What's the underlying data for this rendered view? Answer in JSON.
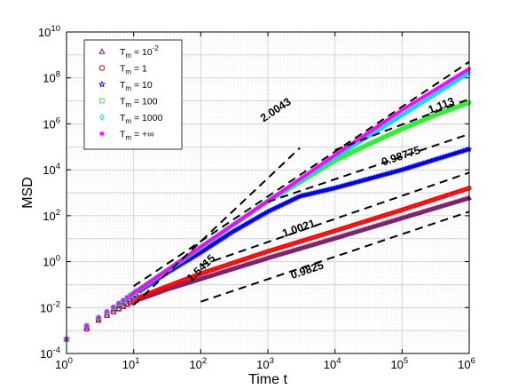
{
  "chart_data": {
    "type": "scatter",
    "x_scale": "log",
    "y_scale": "log",
    "xlim": [
      1,
      1000000
    ],
    "ylim": [
      0.0001,
      10000000000
    ],
    "xlabel": "Time t",
    "ylabel": "MSD",
    "grid": true,
    "legend_position": "top-left",
    "x_ticks": [
      {
        "value": 1,
        "base": "10",
        "exp": "0"
      },
      {
        "value": 10,
        "base": "10",
        "exp": "1"
      },
      {
        "value": 100,
        "base": "10",
        "exp": "2"
      },
      {
        "value": 1000,
        "base": "10",
        "exp": "3"
      },
      {
        "value": 10000,
        "base": "10",
        "exp": "4"
      },
      {
        "value": 100000,
        "base": "10",
        "exp": "5"
      },
      {
        "value": 1000000,
        "base": "10",
        "exp": "6"
      }
    ],
    "y_ticks": [
      {
        "value": 0.0001,
        "base": "10",
        "exp": "-4"
      },
      {
        "value": 0.01,
        "base": "10",
        "exp": "-2"
      },
      {
        "value": 1,
        "base": "10",
        "exp": "0"
      },
      {
        "value": 100,
        "base": "10",
        "exp": "2"
      },
      {
        "value": 10000,
        "base": "10",
        "exp": "4"
      },
      {
        "value": 1000000,
        "base": "10",
        "exp": "6"
      },
      {
        "value": 100000000,
        "base": "10",
        "exp": "8"
      },
      {
        "value": 10000000000,
        "base": "10",
        "exp": "10"
      }
    ],
    "series": [
      {
        "name": "T_m = 10^-2",
        "label_main": "T",
        "label_sub": "m",
        "label_rest": " = 10",
        "label_sup": "-2",
        "color": "#7a1e6e",
        "marker": "triangle",
        "points": [
          [
            1,
            0.00042
          ],
          [
            2,
            0.0012
          ],
          [
            3,
            0.0028
          ],
          [
            5,
            0.0065
          ],
          [
            10,
            0.019
          ],
          [
            30,
            0.06
          ],
          [
            100,
            0.18
          ],
          [
            1000,
            1.45
          ],
          [
            10000,
            10.5
          ],
          [
            100000,
            80
          ],
          [
            1000000,
            600
          ]
        ]
      },
      {
        "name": "T_m = 1",
        "label_main": "T",
        "label_sub": "m",
        "label_rest": " = 1",
        "label_sup": "",
        "color": "#ff0000",
        "marker": "circle",
        "points": [
          [
            1,
            0.00042
          ],
          [
            2,
            0.0012
          ],
          [
            3,
            0.0029
          ],
          [
            5,
            0.007
          ],
          [
            10,
            0.022
          ],
          [
            30,
            0.08
          ],
          [
            100,
            0.3
          ],
          [
            1000,
            2.8
          ],
          [
            10000,
            22
          ],
          [
            100000,
            180
          ],
          [
            1000000,
            1600
          ]
        ]
      },
      {
        "name": "T_m = 10",
        "label_main": "T",
        "label_sub": "m",
        "label_rest": " = 10",
        "label_sup": "",
        "color": "#0000ee",
        "marker": "star",
        "points": [
          [
            1,
            0.00042
          ],
          [
            2,
            0.0014
          ],
          [
            3,
            0.0032
          ],
          [
            5,
            0.009
          ],
          [
            10,
            0.035
          ],
          [
            30,
            0.3
          ],
          [
            100,
            2.5
          ],
          [
            300,
            20
          ],
          [
            1000,
            150
          ],
          [
            3000,
            700
          ],
          [
            10000,
            1600
          ],
          [
            100000,
            10000
          ],
          [
            1000000,
            80000
          ]
        ]
      },
      {
        "name": "T_m = 100",
        "label_main": "T",
        "label_sub": "m",
        "label_rest": " = 100",
        "label_sup": "",
        "color": "#33ee33",
        "marker": "square",
        "points": [
          [
            1,
            0.00042
          ],
          [
            2,
            0.0016
          ],
          [
            3,
            0.0036
          ],
          [
            5,
            0.01
          ],
          [
            10,
            0.042
          ],
          [
            30,
            0.38
          ],
          [
            100,
            4.2
          ],
          [
            1000,
            420
          ],
          [
            10000,
            25000
          ],
          [
            30000,
            120000
          ],
          [
            100000,
            600000
          ],
          [
            300000,
            2300000
          ],
          [
            1000000,
            8500000
          ]
        ]
      },
      {
        "name": "T_m = 1000",
        "label_main": "T",
        "label_sub": "m",
        "label_rest": " = 1000",
        "label_sup": "",
        "color": "#00d8ff",
        "marker": "diamond",
        "points": [
          [
            1,
            0.00042
          ],
          [
            2,
            0.0016
          ],
          [
            3,
            0.0037
          ],
          [
            5,
            0.0103
          ],
          [
            10,
            0.042
          ],
          [
            30,
            0.38
          ],
          [
            100,
            4.3
          ],
          [
            1000,
            430
          ],
          [
            10000,
            35000
          ],
          [
            100000,
            2400000
          ],
          [
            1000000,
            170000000
          ]
        ]
      },
      {
        "name": "T_m = +inf",
        "label_main": "T",
        "label_sub": "m",
        "label_rest": " = +∞",
        "label_sup": "",
        "color": "#ff00ff",
        "marker": "asterisk",
        "points": [
          [
            1,
            0.00042
          ],
          [
            2,
            0.0016
          ],
          [
            3,
            0.0037
          ],
          [
            5,
            0.0105
          ],
          [
            10,
            0.043
          ],
          [
            30,
            0.39
          ],
          [
            100,
            4.4
          ],
          [
            1000,
            440
          ],
          [
            10000,
            44000
          ],
          [
            100000,
            4000000
          ],
          [
            1000000,
            250000000
          ]
        ]
      }
    ],
    "guides": [
      {
        "label": "2.0043",
        "x0": 10,
        "y0": 0.085,
        "x1": 1000000,
        "y1": 500000000,
        "label_x": 1400,
        "label_y": 3000000
      },
      {
        "label": "1.113",
        "x0": 10000,
        "y0": 72000,
        "x1": 1000000,
        "y1": 12000000,
        "label_x": 400000,
        "label_y": 4500000
      },
      {
        "label": "0.98775",
        "x0": 1000,
        "y0": 400,
        "x1": 1000000,
        "y1": 360000,
        "label_x": 100000,
        "label_y": 28000
      },
      {
        "label": "1.5415",
        "x0": 10,
        "y0": 0.013,
        "x1": 3000,
        "y1": 90000,
        "label_x": 110,
        "label_y": 0.4
      },
      {
        "label": "1.0021",
        "x0": 100,
        "y0": 0.7,
        "x1": 1000000,
        "y1": 7500,
        "label_x": 3000,
        "label_y": 20
      },
      {
        "label": "0.9825",
        "x0": 100,
        "y0": 0.018,
        "x1": 1000000,
        "y1": 150,
        "label_x": 4000,
        "label_y": 0.3
      }
    ]
  }
}
